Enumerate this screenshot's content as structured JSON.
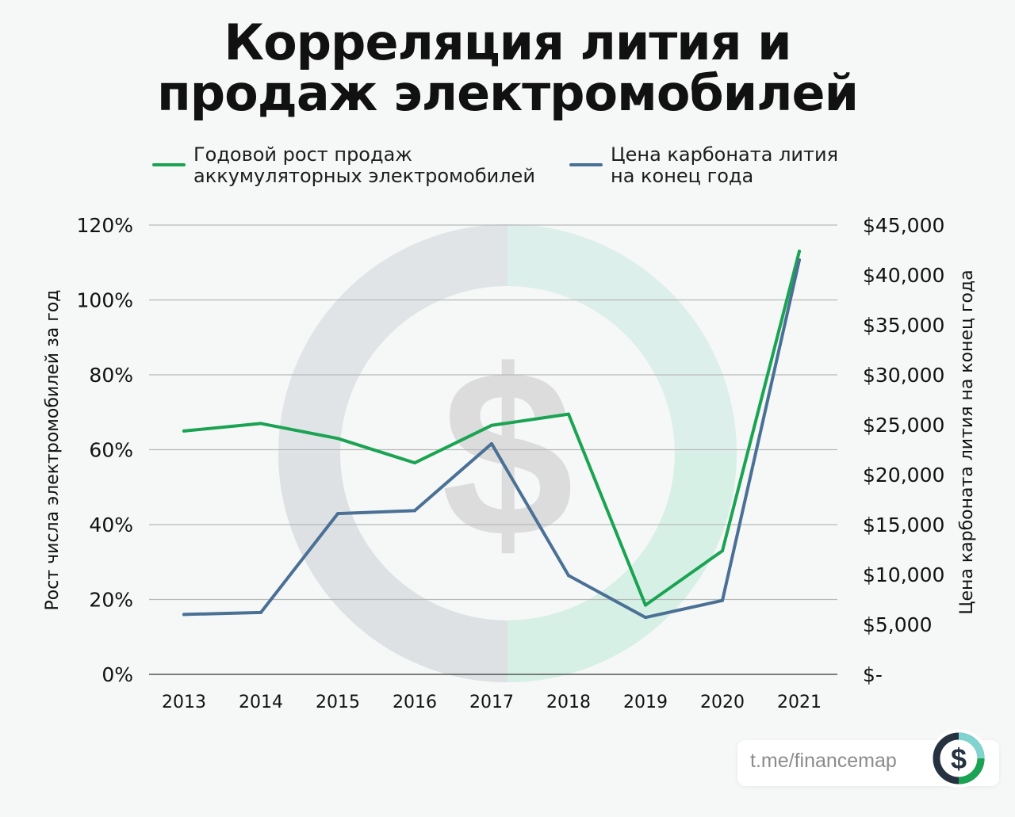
{
  "title": {
    "line1": "Корреляция лития и",
    "line2": "продаж электромобилей"
  },
  "legend": [
    {
      "line1": "Годовой рост продаж",
      "line2": "аккумуляторных электромобилей",
      "color": "#1aa352"
    },
    {
      "line1": "Цена карбоната лития",
      "line2": "на конец года",
      "color": "#4a7095"
    }
  ],
  "chart_data": {
    "type": "line",
    "title": "Корреляция лития и продаж электромобилей",
    "x": [
      "2013",
      "2014",
      "2015",
      "2016",
      "2017",
      "2018",
      "2019",
      "2020",
      "2021"
    ],
    "y_left": {
      "label": "Рост числа электромобилей за год",
      "ticks": [
        "0%",
        "20%",
        "40%",
        "60%",
        "80%",
        "100%",
        "120%"
      ],
      "range": [
        0,
        120
      ]
    },
    "y_right": {
      "label": "Цена карбоната лития на конец года",
      "ticks": [
        "$-",
        "$5,000",
        "$10,000",
        "$15,000",
        "$20,000",
        "$25,000",
        "$30,000",
        "$35,000",
        "$40,000",
        "$45,000"
      ],
      "range": [
        0,
        45000
      ]
    },
    "series": [
      {
        "name": "Годовой рост продаж аккумуляторных электромобилей",
        "axis": "left",
        "color": "#1aa352",
        "values": [
          65,
          67,
          63,
          56.5,
          66.5,
          69.5,
          18.5,
          33,
          113
        ]
      },
      {
        "name": "Цена карбоната лития на конец года",
        "axis": "right",
        "color": "#4a7095",
        "values": [
          6000,
          6200,
          16100,
          16400,
          23100,
          9900,
          5700,
          7400,
          41500
        ]
      }
    ],
    "grid": true,
    "legend_position": "top"
  },
  "footer": {
    "link_text": "t.me/financemap",
    "logo_icon": "dollar-ring-icon"
  },
  "watermark_icon": "dollar-ring-icon"
}
